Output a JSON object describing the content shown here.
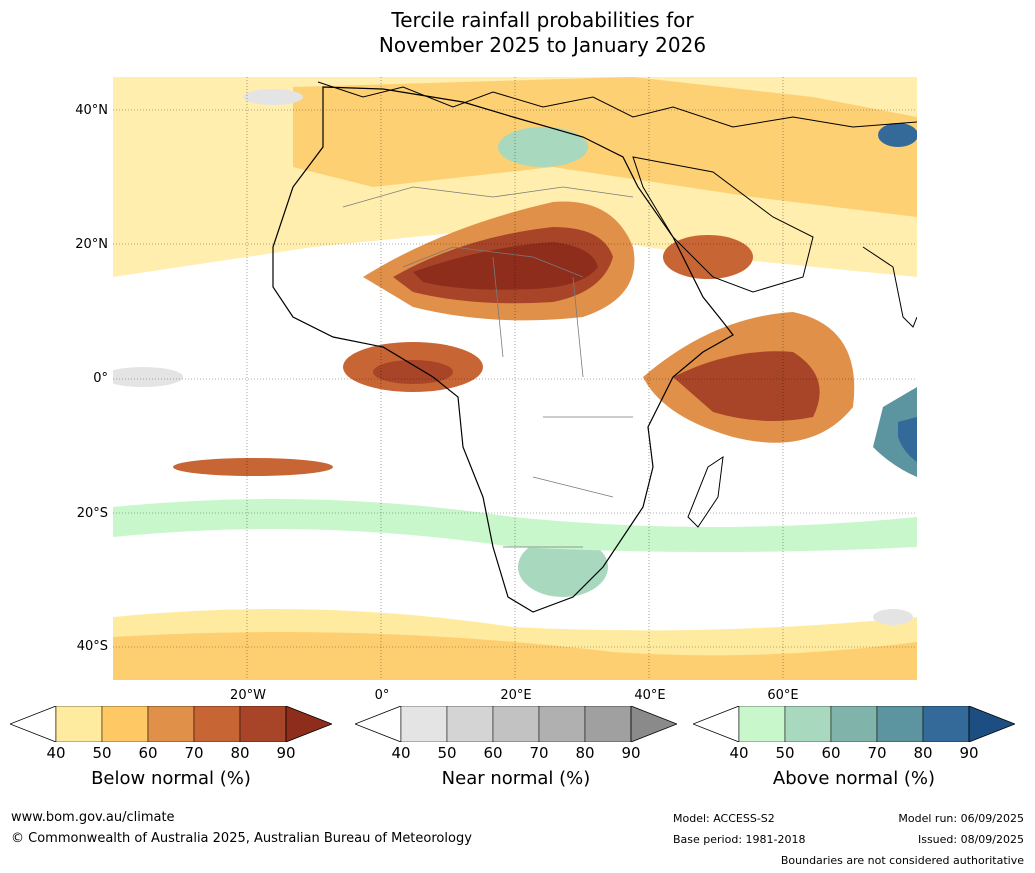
{
  "title": {
    "line1": "Tercile rainfall probabilities for",
    "line2": "November 2025 to January 2026"
  },
  "map": {
    "lat_labels": [
      "40°N",
      "20°N",
      "0°",
      "20°S",
      "40°S"
    ],
    "lon_labels": [
      "20°W",
      "0°",
      "20°E",
      "40°E",
      "60°E"
    ],
    "region": "Africa and surrounding oceans"
  },
  "legends": {
    "below": {
      "title": "Below normal (%)",
      "ticks": [
        "40",
        "50",
        "60",
        "70",
        "80",
        "90"
      ],
      "colors": [
        "#ffffff",
        "#ffeba0",
        "#fec865",
        "#e09048",
        "#c86534",
        "#a84528",
        "#8e2d1c"
      ]
    },
    "near": {
      "title": "Near normal (%)",
      "ticks": [
        "40",
        "50",
        "60",
        "70",
        "80",
        "90"
      ],
      "colors": [
        "#ffffff",
        "#e4e4e4",
        "#d4d4d4",
        "#c2c2c2",
        "#b0b0b0",
        "#a0a0a0",
        "#8a8a8a"
      ]
    },
    "above": {
      "title": "Above normal (%)",
      "ticks": [
        "40",
        "50",
        "60",
        "70",
        "80",
        "90"
      ],
      "colors": [
        "#ffffff",
        "#c8f7cc",
        "#a8d8bd",
        "#80b4aa",
        "#5c94a0",
        "#336a9a",
        "#1c4e82"
      ]
    }
  },
  "footer": {
    "website": "www.bom.gov.au/climate",
    "copyright": "© Commonwealth of Australia 2025, Australian Bureau of Meteorology",
    "model": "Model: ACCESS-S2",
    "base_period": "Base period: 1981-2018",
    "model_run": "Model run: 06/09/2025",
    "issued": "Issued: 08/09/2025",
    "disclaimer": "Boundaries are not considered authoritative"
  }
}
